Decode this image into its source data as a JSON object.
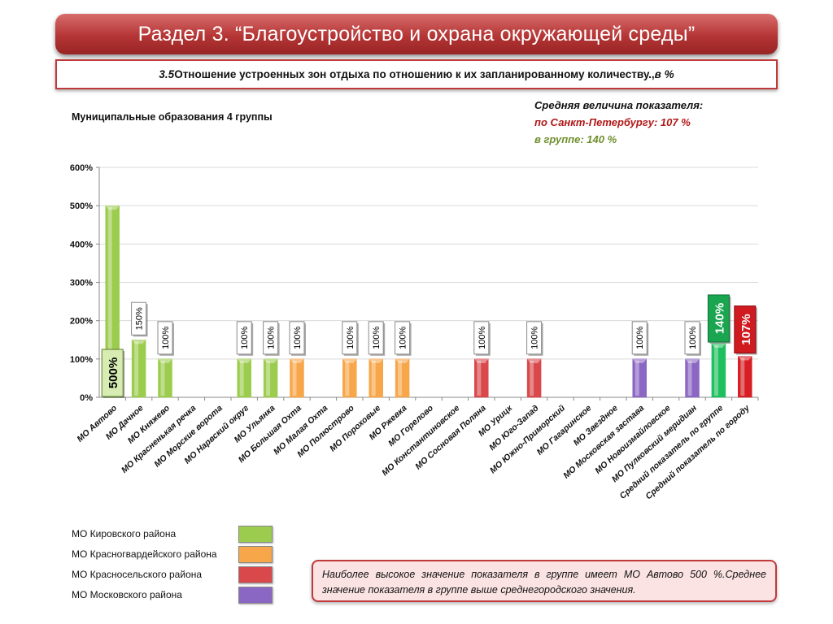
{
  "header": {
    "title": "Раздел 3. “Благоустройство и охрана окружающей среды”",
    "subtitle_number": "3.5",
    "subtitle_text": " Отношение устроенных зон отдыха по отношению к их запланированному количеству.,",
    "subtitle_unit": " в %"
  },
  "group_label": "Муниципальные образования 4 группы",
  "average": {
    "title": "Средняя величина показателя:",
    "city": "по Санкт-Петербургу:  107 %",
    "group": "в группе:  140 %"
  },
  "legend": [
    {
      "label": "МО Кировского района",
      "color": "#9ccc4e"
    },
    {
      "label": "МО Красногвардейского района",
      "color": "#f7a64a"
    },
    {
      "label": "МО Красносельского района",
      "color": "#d9484b"
    },
    {
      "label": "МО Московского района",
      "color": "#8a67c2"
    }
  ],
  "note": "Наиболее высокое значение показателя в группе имеет МО Автово 500 %.Среднее значение показателя в группе выше среднегородского значения.",
  "chart_data": {
    "type": "bar",
    "ylim": [
      0,
      600
    ],
    "yticks": [
      "0%",
      "100%",
      "200%",
      "300%",
      "400%",
      "500%",
      "600%"
    ],
    "categories": [
      "МО Автово",
      "МО Дачное",
      "МО Княжево",
      "МО Красненькая речка",
      "МО Морские ворота",
      "МО Нарвский округ",
      "МО Ульянка",
      "МО Большая Охта",
      "МО Малая Охта",
      "МО Полюстрово",
      "МО Пороховые",
      "МО Ржевка",
      "МО Горелово",
      "МО Константиновское",
      "МО Сосновая Поляна",
      "МО Урицк",
      "МО Юго-Запад",
      "МО Южно-Приморский",
      "МО Гагаринское",
      "МО Звездное",
      "МО Московская застава",
      "МО Новоизмайловское",
      "МО Пулковский меридиан",
      "Средний показатель по группе",
      "Средний показатель по городу"
    ],
    "values": [
      500,
      150,
      100,
      0,
      0,
      100,
      100,
      100,
      0,
      100,
      100,
      100,
      0,
      0,
      100,
      0,
      100,
      0,
      0,
      0,
      100,
      0,
      100,
      140,
      107
    ],
    "data_labels": [
      "500%",
      "150%",
      "100%",
      "",
      "",
      "100%",
      "100%",
      "100%",
      "",
      "100%",
      "100%",
      "100%",
      "",
      "",
      "100%",
      "",
      "100%",
      "",
      "",
      "",
      "100%",
      "",
      "100%",
      "140%",
      "107%"
    ],
    "bar_colors": [
      "#9ccc4e",
      "#9ccc4e",
      "#9ccc4e",
      "#9ccc4e",
      "#9ccc4e",
      "#9ccc4e",
      "#9ccc4e",
      "#f7a64a",
      "#f7a64a",
      "#f7a64a",
      "#f7a64a",
      "#f7a64a",
      "#d9484b",
      "#d9484b",
      "#d9484b",
      "#d9484b",
      "#d9484b",
      "#8a67c2",
      "#8a67c2",
      "#8a67c2",
      "#8a67c2",
      "#8a67c2",
      "#8a67c2",
      "#1fbf5f",
      "#d61e24"
    ],
    "grid": true
  }
}
